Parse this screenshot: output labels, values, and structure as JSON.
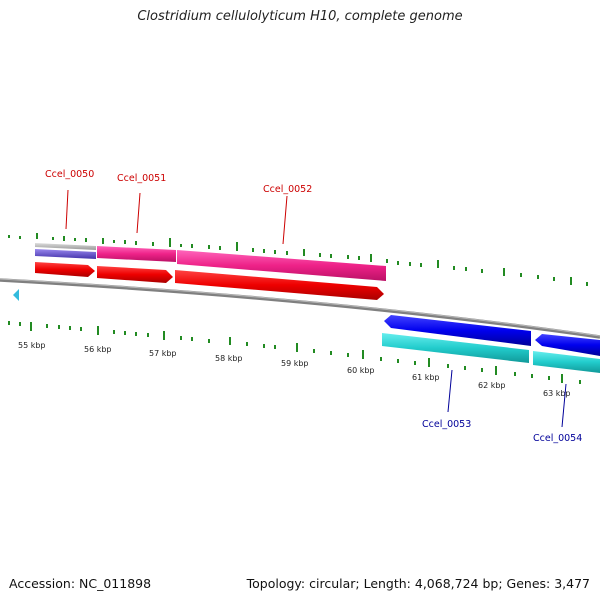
{
  "title": "Clostridium cellulolyticum H10, complete genome",
  "footer": {
    "accession": "Accession: NC_011898",
    "stats": "Topology: circular; Length: 4,068,724 bp; Genes: 3,477"
  },
  "scale": {
    "tick_labels": [
      "55 kbp",
      "56 kbp",
      "57 kbp",
      "58 kbp",
      "59 kbp",
      "60 kbp",
      "61 kbp",
      "62 kbp",
      "63 kbp"
    ]
  },
  "genes": [
    {
      "name": "Ccel_0050",
      "strand": "forward",
      "color": "#cc0000"
    },
    {
      "name": "Ccel_0051",
      "strand": "forward",
      "color": "#cc0000"
    },
    {
      "name": "Ccel_0052",
      "strand": "forward",
      "color": "#cc0000"
    },
    {
      "name": "Ccel_0053",
      "strand": "reverse",
      "color": "#000099"
    },
    {
      "name": "Ccel_0054",
      "strand": "reverse",
      "color": "#000099"
    }
  ],
  "colors": {
    "backbone": "#808080",
    "cds_forward": "#ee0000",
    "cds_reverse": "#0000ee",
    "feature_forward": "#ee2288",
    "feature_reverse": "#22cccc",
    "feature_misc": "#aaaaaa",
    "feature_domain": "#6655cc",
    "gc_ticks": "#228b22",
    "arrow_marker": "#33bbdd"
  }
}
